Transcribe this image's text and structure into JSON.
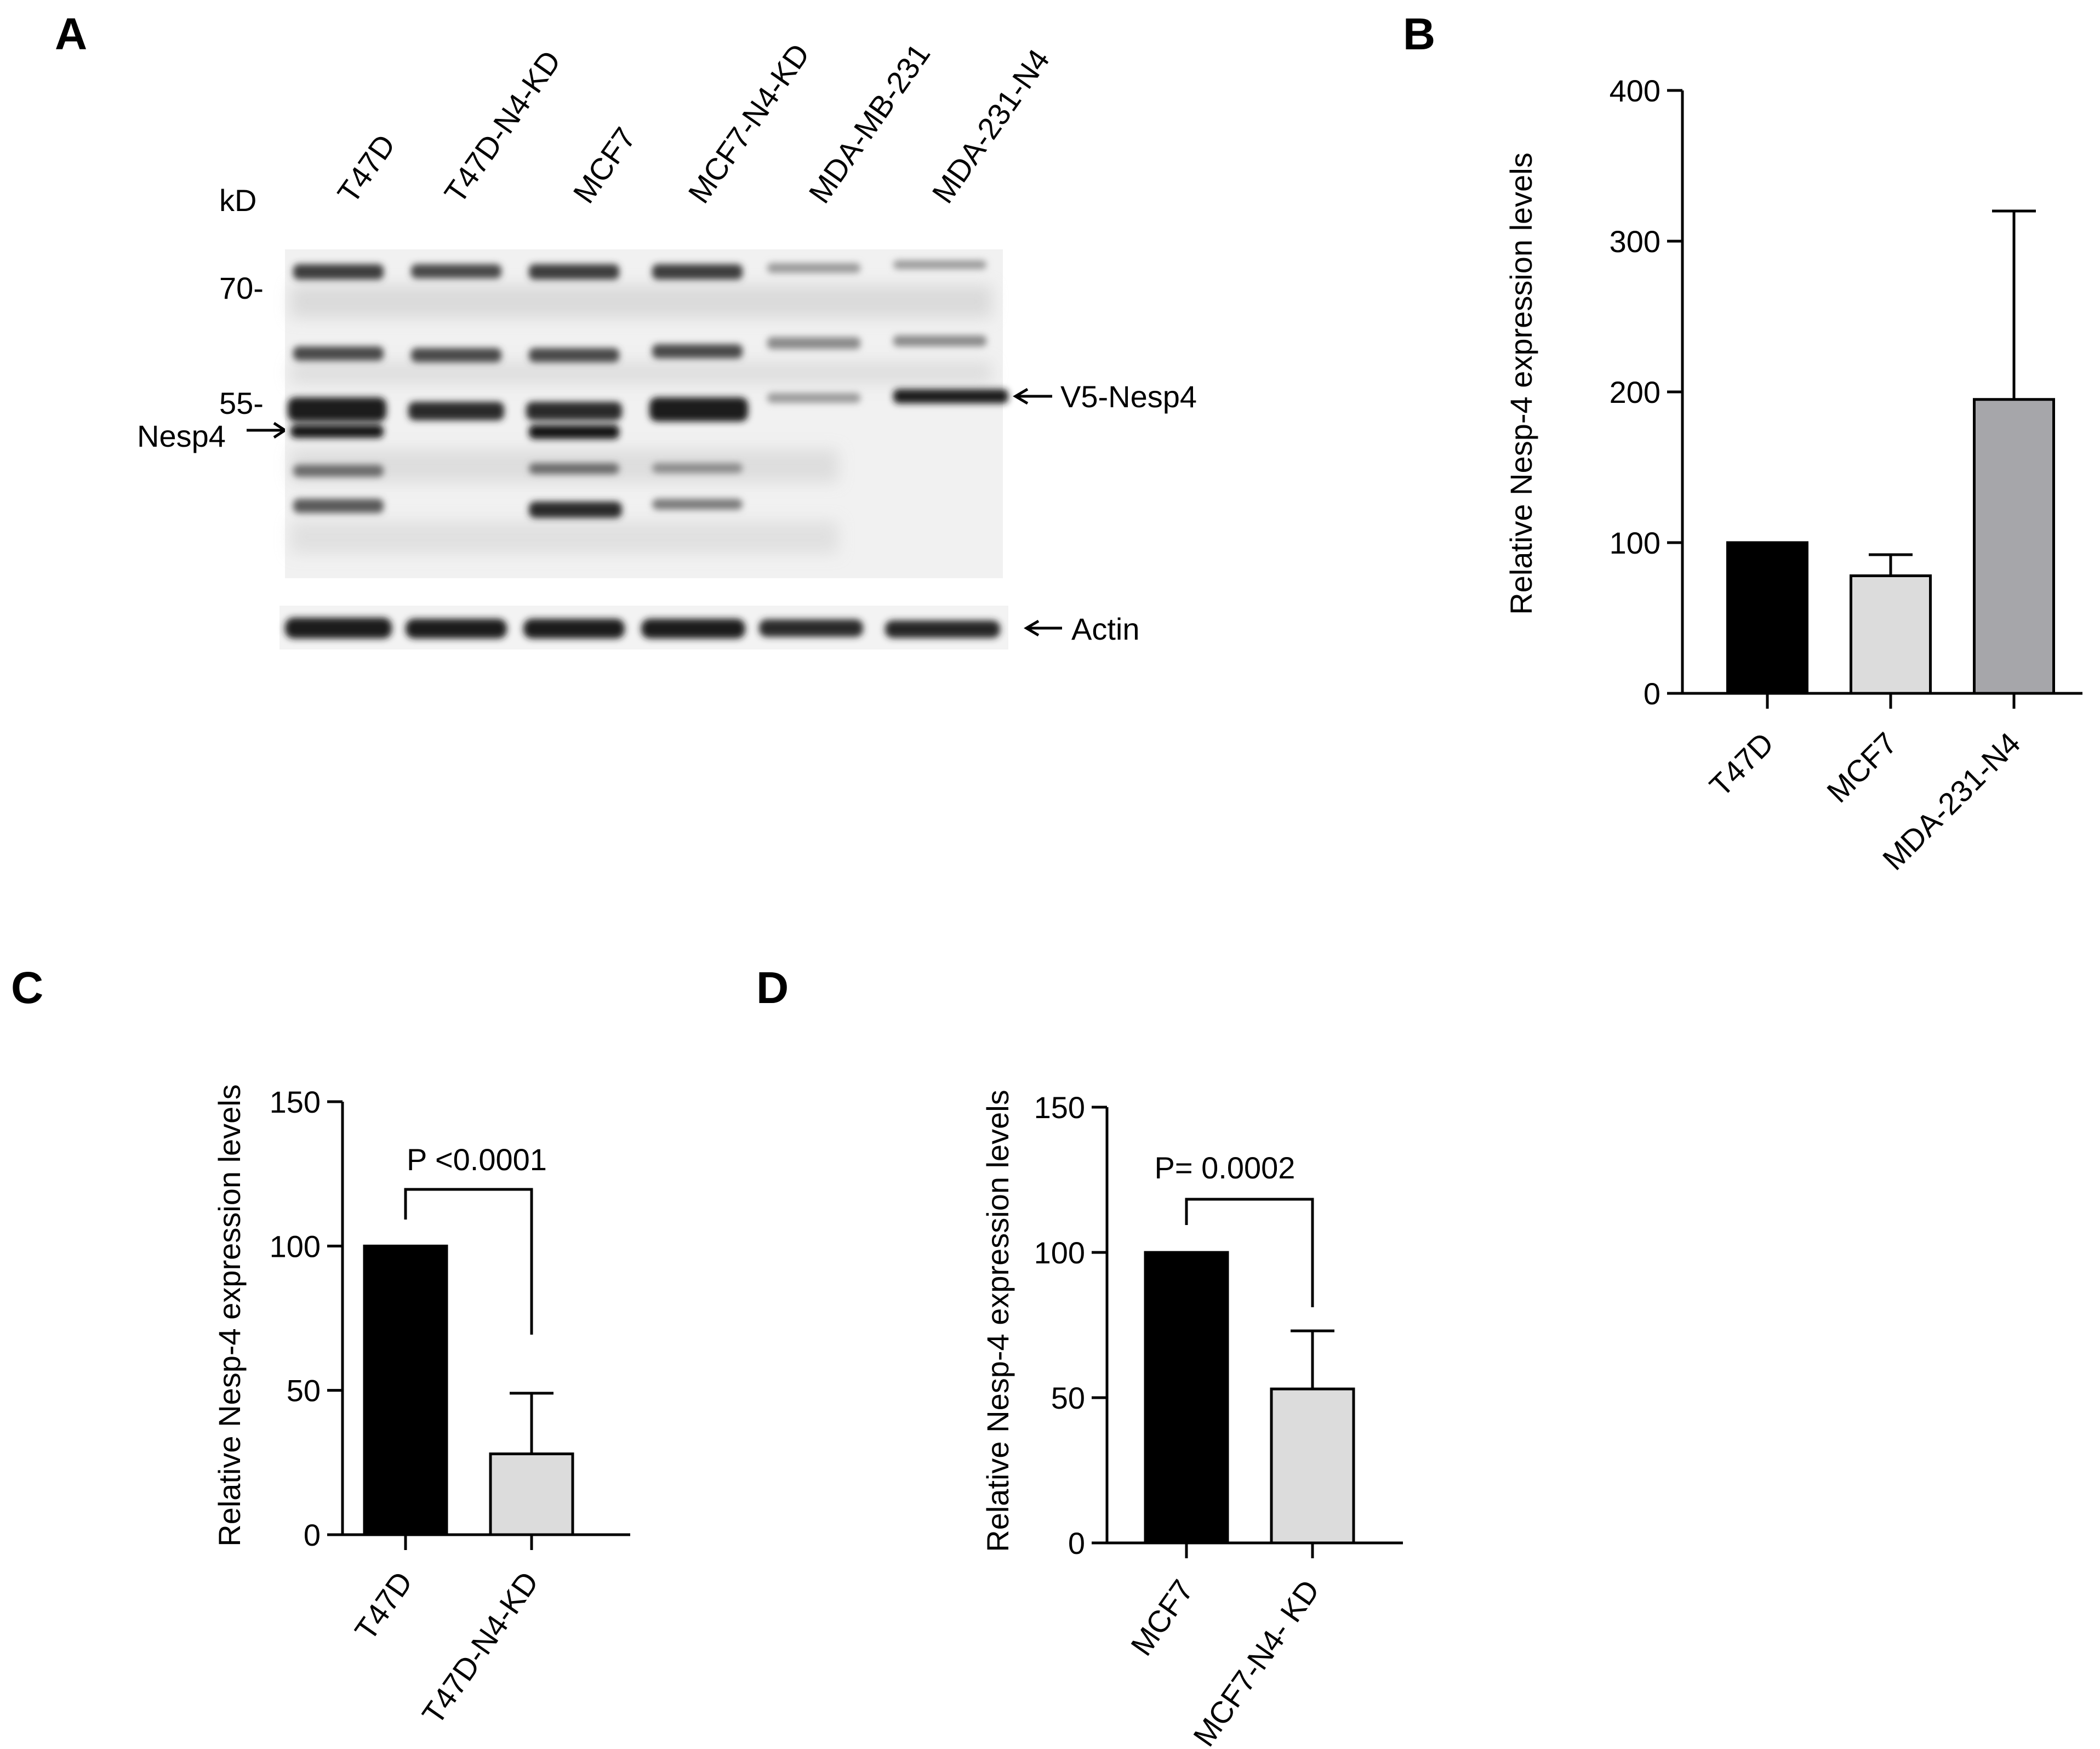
{
  "panels": {
    "a": {
      "letter": "A",
      "lanes": [
        "T47D",
        "T47D-N4-KD",
        "MCF7",
        "MCF7-N4-KD",
        "MDA-MB-231",
        "MDA-231-N4"
      ],
      "unit": "kD",
      "markers": [
        "70-",
        "55-"
      ],
      "band_labels": {
        "nesp4": "Nesp4",
        "v5": "V5-Nesp4",
        "actin": "Actin"
      }
    },
    "b": {
      "letter": "B"
    },
    "c": {
      "letter": "C"
    },
    "d": {
      "letter": "D"
    }
  },
  "colors": {
    "black_bar": "#000000",
    "light_bar": "#dcdcdc",
    "mid_bar": "#a6a6aa"
  },
  "chart_data": [
    {
      "panel": "B",
      "type": "bar",
      "categories": [
        "T47D",
        "MCF7",
        "MDA-231-N4"
      ],
      "values": [
        100,
        78,
        195
      ],
      "error_upper": [
        0,
        14,
        125
      ],
      "ylabel": "Relative Nesp-4 expression levels",
      "ylim": [
        0,
        400
      ],
      "yticks": [
        0,
        100,
        200,
        300,
        400
      ],
      "colors": [
        "#000000",
        "#dcdcdc",
        "#a6a6aa"
      ]
    },
    {
      "panel": "C",
      "type": "bar",
      "categories": [
        "T47D",
        "T47D-N4-KD"
      ],
      "values": [
        100,
        28
      ],
      "error_upper": [
        0,
        21
      ],
      "ylabel": "Relative Nesp-4 expression levels",
      "ylim": [
        0,
        150
      ],
      "yticks": [
        0,
        50,
        100,
        150
      ],
      "colors": [
        "#000000",
        "#dcdcdc"
      ],
      "annotation": {
        "p_label": "P",
        "p_value": "<0.0001"
      }
    },
    {
      "panel": "D",
      "type": "bar",
      "categories": [
        "MCF7",
        "MCF7-N4- KD"
      ],
      "values": [
        100,
        53
      ],
      "error_upper": [
        0,
        20
      ],
      "ylabel": "Relative Nesp-4 expression levels",
      "ylim": [
        0,
        150
      ],
      "yticks": [
        0,
        50,
        100,
        150
      ],
      "colors": [
        "#000000",
        "#dcdcdc"
      ],
      "annotation": {
        "p_label": "P=",
        "p_value": "0.0002"
      }
    }
  ]
}
